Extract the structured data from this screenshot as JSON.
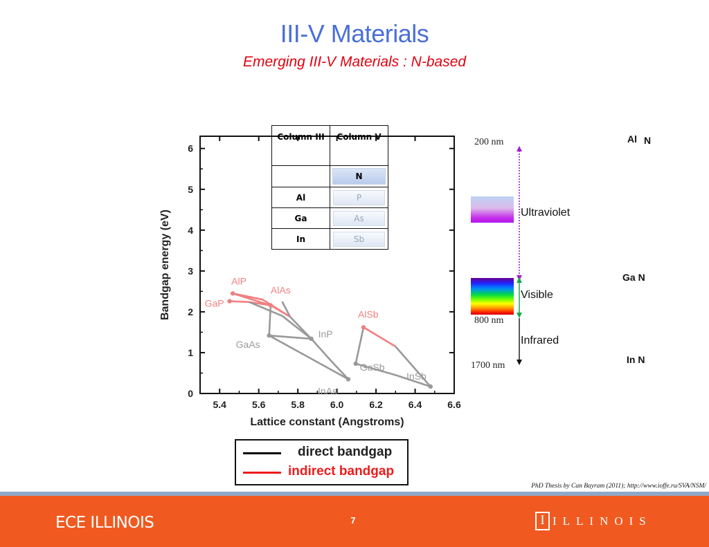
{
  "header": {
    "title": "III-V Materials",
    "subtitle": "Emerging III-V Materials : N-based"
  },
  "periodic_table": {
    "col_iii_header": "Column III",
    "col_v_header": "Column V",
    "rows": [
      {
        "iii": "",
        "v": "N"
      },
      {
        "iii": "Al",
        "v": "P"
      },
      {
        "iii": "Ga",
        "v": "As"
      },
      {
        "iii": "In",
        "v": "Sb"
      }
    ]
  },
  "chart_data": {
    "type": "scatter",
    "xlabel": "Lattice constant (Angstroms)",
    "ylabel": "Bandgap energy (eV)",
    "xlim": [
      5.3,
      6.6
    ],
    "ylim": [
      0,
      6.3
    ],
    "x_ticks": [
      "5.4",
      "5.6",
      "5.8",
      "6.0",
      "6.2",
      "6.4",
      "6.6"
    ],
    "y_ticks": [
      "0",
      "1",
      "2",
      "3",
      "4",
      "5",
      "6"
    ],
    "points": [
      {
        "label": "AlP",
        "x": 5.467,
        "y": 2.45,
        "gap": "indirect"
      },
      {
        "label": "GaP",
        "x": 5.451,
        "y": 2.26,
        "gap": "indirect"
      },
      {
        "label": "AlAs",
        "x": 5.661,
        "y": 2.16,
        "gap": "indirect"
      },
      {
        "label": "GaAs",
        "x": 5.653,
        "y": 1.42,
        "gap": "direct"
      },
      {
        "label": "InP",
        "x": 5.869,
        "y": 1.34,
        "gap": "direct"
      },
      {
        "label": "InAs",
        "x": 6.058,
        "y": 0.35,
        "gap": "direct"
      },
      {
        "label": "AlSb",
        "x": 6.136,
        "y": 1.62,
        "gap": "indirect"
      },
      {
        "label": "GaSb",
        "x": 6.096,
        "y": 0.73,
        "gap": "direct"
      },
      {
        "label": "InSb",
        "x": 6.479,
        "y": 0.17,
        "gap": "direct"
      }
    ],
    "curves": [
      {
        "gap": "indirect",
        "x": [
          5.451,
          5.55,
          5.661
        ],
        "y": [
          2.26,
          2.24,
          2.16
        ]
      },
      {
        "gap": "indirect",
        "x": [
          5.467,
          5.661
        ],
        "y": [
          2.45,
          2.16
        ]
      },
      {
        "gap": "indirect",
        "x": [
          5.467,
          5.62,
          5.76
        ],
        "y": [
          2.45,
          2.3,
          1.88
        ]
      },
      {
        "gap": "indirect",
        "x": [
          5.661,
          5.76
        ],
        "y": [
          2.16,
          1.88
        ]
      },
      {
        "gap": "direct",
        "x": [
          5.55,
          5.72,
          5.869
        ],
        "y": [
          2.24,
          1.9,
          1.34
        ]
      },
      {
        "gap": "direct",
        "x": [
          5.72,
          5.76,
          5.869
        ],
        "y": [
          2.25,
          1.88,
          1.34
        ]
      },
      {
        "gap": "direct",
        "x": [
          5.661,
          5.653
        ],
        "y": [
          2.16,
          1.42
        ]
      },
      {
        "gap": "direct",
        "x": [
          5.653,
          5.869
        ],
        "y": [
          1.42,
          1.34
        ]
      },
      {
        "gap": "direct",
        "x": [
          5.653,
          5.85,
          6.058
        ],
        "y": [
          1.42,
          0.9,
          0.35
        ]
      },
      {
        "gap": "direct",
        "x": [
          5.869,
          5.97,
          6.058
        ],
        "y": [
          1.34,
          0.8,
          0.35
        ]
      },
      {
        "gap": "indirect",
        "x": [
          6.136,
          6.3
        ],
        "y": [
          1.62,
          1.15
        ]
      },
      {
        "gap": "direct",
        "x": [
          6.096,
          6.136
        ],
        "y": [
          0.73,
          1.62
        ]
      },
      {
        "gap": "direct",
        "x": [
          6.3,
          6.479
        ],
        "y": [
          1.15,
          0.17
        ]
      },
      {
        "gap": "direct",
        "x": [
          6.096,
          6.3,
          6.479
        ],
        "y": [
          0.73,
          0.45,
          0.17
        ]
      }
    ],
    "legend": [
      {
        "label": "direct bandgap",
        "color": "#000000"
      },
      {
        "label": "indirect bandgap",
        "color": "#ee1c1c"
      }
    ],
    "legend_position": "bottom"
  },
  "spectrum": {
    "wavelengths": {
      "uv_edge": "200 nm",
      "visible_edge": "800 nm",
      "ir_edge": "1700 nm"
    },
    "bands": {
      "uv": "Ultraviolet",
      "visible": "Visible",
      "ir": "Infrared"
    },
    "compounds": {
      "aln_al": "Al",
      "aln_n": "N",
      "gan": "Ga N",
      "inn": "In N"
    }
  },
  "citation": "PhD Thesis by Can Bayram (2011);  http://www.ioffe.ru/SVA/NSM/",
  "footer": {
    "brand": "ECE ILLINOIS",
    "page_number": "7",
    "logo_mark": "I",
    "logo_word": "ILLINOIS"
  },
  "colors": {
    "title": "#4a6fd8",
    "subtitle": "#e0000f",
    "direct": "#999999",
    "indirect": "#f08080",
    "footer": "#f05a20"
  }
}
